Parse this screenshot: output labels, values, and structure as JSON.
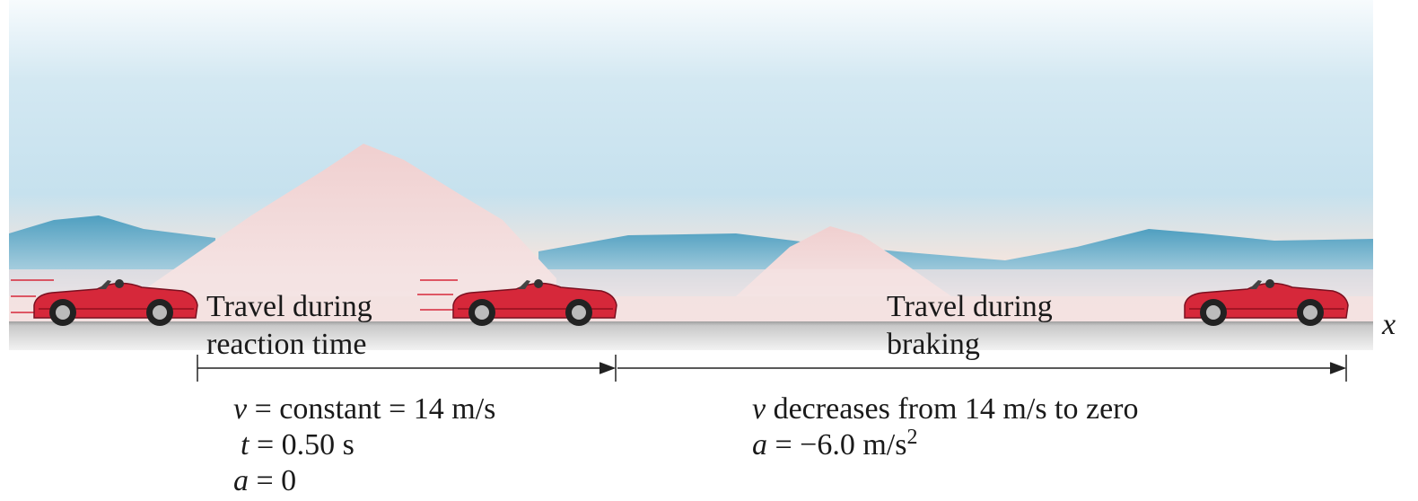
{
  "labels": {
    "reaction": [
      "Travel during",
      "reaction time"
    ],
    "braking": [
      "Travel during",
      "braking"
    ],
    "axis": "x"
  },
  "equations": {
    "reaction": [
      {
        "symbol": "v",
        "expression": "= constant = 14 m/s"
      },
      {
        "symbol": "t",
        "expression": "= 0.50 s"
      },
      {
        "symbol": "a",
        "expression": "= 0"
      }
    ],
    "braking": [
      {
        "symbol": "v",
        "expression": "decreases from 14 m/s to zero"
      },
      {
        "symbol": "a",
        "expression": "= −6.0 m/s",
        "superscript": "2"
      }
    ]
  }
}
